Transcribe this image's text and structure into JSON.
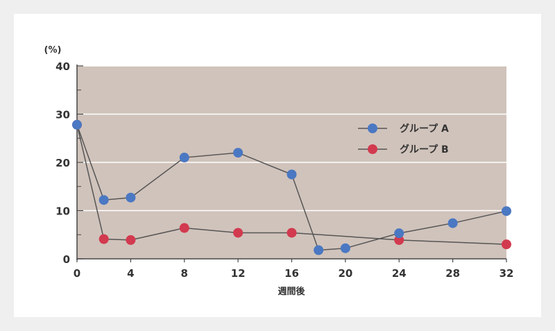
{
  "chart_data": {
    "type": "line",
    "unit_label": "(%)",
    "xlabel": "週間後",
    "ylim": [
      0,
      40
    ],
    "yticks": [
      0,
      10,
      20,
      30,
      40
    ],
    "xlim": [
      0,
      32
    ],
    "xticks": [
      0,
      4,
      8,
      12,
      16,
      20,
      24,
      28,
      32
    ],
    "grid": true,
    "legend_position": "top-right",
    "series": [
      {
        "name": "グループ A",
        "color": "#4a78c2",
        "x": [
          0,
          2,
          4,
          8,
          12,
          16,
          18,
          20,
          24,
          28,
          32
        ],
        "y": [
          27.8,
          12.2,
          12.7,
          21.0,
          22.0,
          17.5,
          1.8,
          2.2,
          5.3,
          7.4,
          9.9
        ]
      },
      {
        "name": "グループ B",
        "color": "#d23a4f",
        "x": [
          0,
          2,
          4,
          8,
          12,
          16,
          24,
          32
        ],
        "y": [
          27.8,
          4.1,
          3.9,
          6.4,
          5.4,
          5.4,
          3.9,
          3.0
        ]
      }
    ]
  },
  "style": {
    "plot_bg": "#d0c3bb",
    "grid_color": "#ffffff",
    "line_color": "#555555",
    "axis_color": "#444444"
  }
}
